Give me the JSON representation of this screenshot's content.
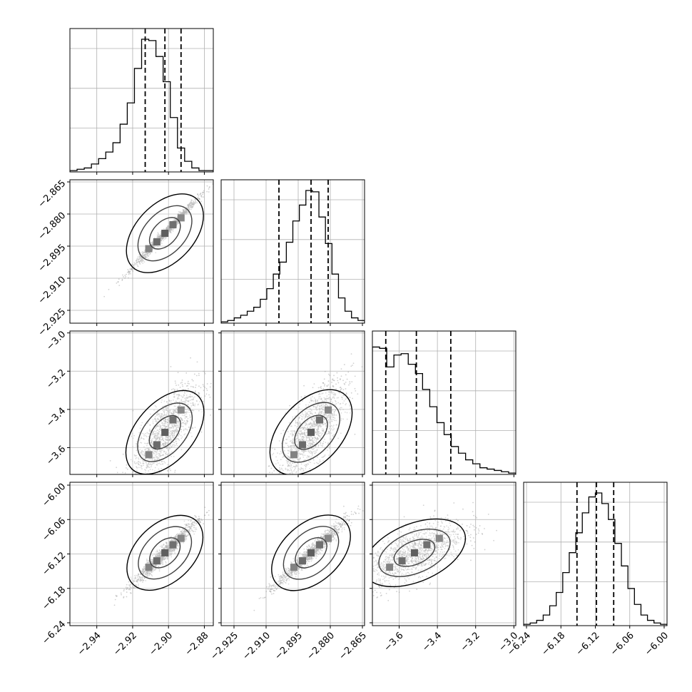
{
  "chart_data": {
    "type": "corner",
    "parameters": [
      {
        "range": [
          -2.955,
          -2.875
        ],
        "ticks": [
          -2.94,
          -2.92,
          -2.9,
          -2.88
        ],
        "tick_labels": [
          "−2.94",
          "−2.92",
          "−2.90",
          "−2.88"
        ],
        "quantiles": [
          -2.913,
          -2.902,
          -2.893
        ],
        "center": -2.902,
        "sigma": 0.009
      },
      {
        "range": [
          -2.931,
          -2.864
        ],
        "ticks": [
          -2.925,
          -2.91,
          -2.895,
          -2.88,
          -2.865
        ],
        "tick_labels": [
          "−2.925",
          "−2.910",
          "−2.895",
          "−2.880",
          "−2.865"
        ],
        "quantiles": [
          -2.904,
          -2.889,
          -2.881
        ],
        "center": -2.889,
        "sigma": 0.008
      },
      {
        "range": [
          -3.74,
          -2.99
        ],
        "ticks": [
          -3.6,
          -3.4,
          -3.2,
          -3.0
        ],
        "tick_labels": [
          "−3.6",
          "−3.4",
          "−3.2",
          "−3.0"
        ],
        "quantiles": [
          -3.67,
          -3.51,
          -3.33
        ],
        "center": -3.52,
        "sigma": 0.13
      },
      {
        "range": [
          -6.245,
          -5.995
        ],
        "ticks": [
          -6.24,
          -6.18,
          -6.12,
          -6.06,
          -6.0
        ],
        "tick_labels": [
          "−6.24",
          "−6.18",
          "−6.12",
          "−6.06",
          "−6.00"
        ],
        "quantiles": [
          -6.152,
          -6.118,
          -6.088
        ],
        "center": -6.118,
        "sigma": 0.028
      }
    ],
    "histograms": [
      [
        1,
        2,
        3,
        6,
        10,
        15,
        22,
        36,
        52,
        78,
        100,
        99,
        87,
        68,
        41,
        18,
        8,
        3,
        1,
        1
      ],
      [
        1,
        2,
        4,
        6,
        9,
        12,
        18,
        26,
        37,
        46,
        61,
        77,
        89,
        100,
        99,
        80,
        60,
        37,
        19,
        9,
        4,
        2
      ],
      [
        96,
        95,
        81,
        90,
        91,
        83,
        76,
        64,
        51,
        39,
        30,
        21,
        16,
        11,
        8,
        5,
        4,
        3,
        2,
        1
      ],
      [
        1,
        2,
        4,
        8,
        15,
        25,
        40,
        55,
        70,
        85,
        97,
        100,
        92,
        80,
        62,
        45,
        28,
        16,
        8,
        4,
        2,
        1
      ]
    ],
    "correlations": [
      [
        0,
        0.99,
        0.75,
        0.97
      ],
      [
        0.99,
        0,
        0.75,
        0.97
      ],
      [
        0.75,
        0.75,
        0,
        0.65
      ],
      [
        0.97,
        0.97,
        0.65,
        0
      ]
    ],
    "quantile_levels": [
      0.16,
      0.5,
      0.84
    ],
    "grid": true
  },
  "colors": {
    "line": "#000000",
    "grid": "#b0b0b0",
    "points": "#9a9a9a"
  }
}
